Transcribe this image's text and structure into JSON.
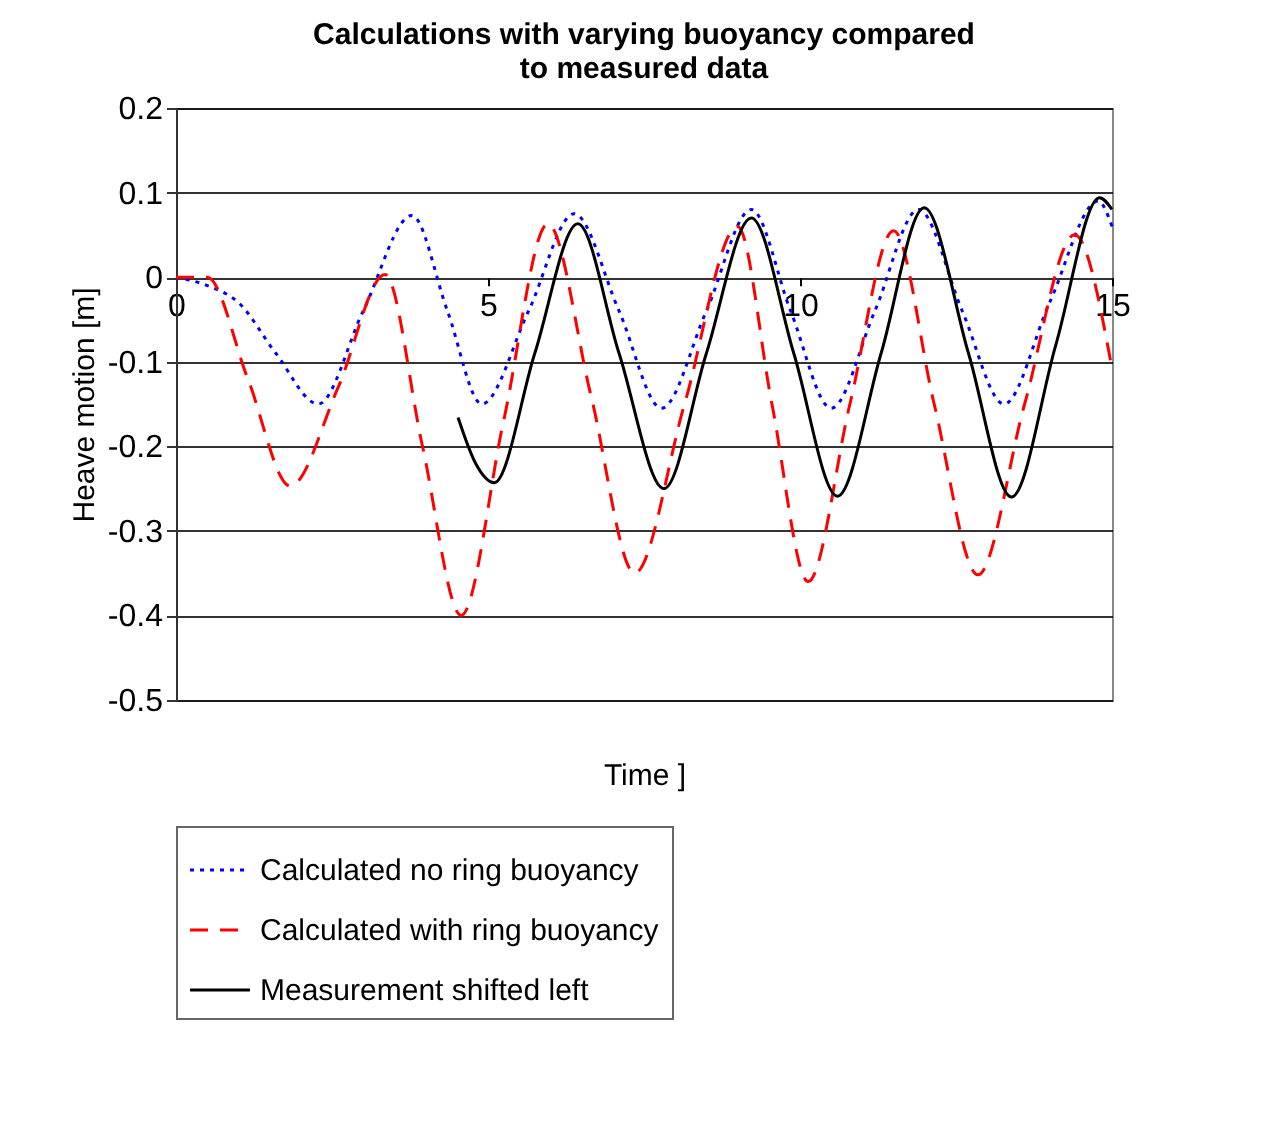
{
  "chart_data": {
    "type": "line",
    "title": "Calculations with varying buoyancy compared to measured data",
    "xlabel": "Time ]",
    "ylabel": "Heave motion [m]",
    "xlim": [
      0,
      15
    ],
    "xticks": [
      0,
      5,
      10,
      15
    ],
    "ylim": [
      -0.5,
      0.2
    ],
    "yticks": [
      -0.5,
      -0.4,
      -0.3,
      -0.2,
      -0.1,
      0,
      0.1,
      0.2
    ],
    "grid": "y",
    "legend": "bottom",
    "series": [
      {
        "name": "Calculated no ring buoyancy",
        "color": "#0000ff",
        "line_style": "dotted",
        "x": [
          0,
          0.5,
          1.0,
          1.6,
          2.28,
          3.0,
          3.78,
          4.35,
          4.9,
          5.65,
          6.38,
          7.1,
          7.78,
          8.5,
          9.22,
          9.85,
          10.5,
          11.2,
          11.9,
          12.6,
          13.27,
          14.0,
          14.78,
          15
        ],
        "values": [
          0,
          -0.01,
          -0.03,
          -0.09,
          -0.15,
          -0.04,
          0.073,
          -0.04,
          -0.15,
          -0.04,
          0.075,
          -0.04,
          -0.155,
          -0.04,
          0.08,
          -0.04,
          -0.155,
          -0.04,
          0.08,
          -0.04,
          -0.15,
          -0.03,
          0.09,
          0.06
        ]
      },
      {
        "name": "Calculated with ring buoyancy",
        "color": "#ff0000",
        "line_style": "dashed",
        "x": [
          0,
          0.5,
          1.15,
          1.83,
          2.6,
          3.35,
          3.95,
          4.57,
          5.25,
          5.96,
          6.65,
          7.35,
          8.15,
          9.0,
          9.55,
          10.13,
          10.8,
          11.5,
          12.15,
          12.85,
          13.6,
          14.4,
          15
        ],
        "values": [
          0,
          0,
          -0.12,
          -0.247,
          -0.13,
          0.003,
          -0.2,
          -0.4,
          -0.17,
          0.063,
          -0.14,
          -0.35,
          -0.15,
          0.06,
          -0.15,
          -0.36,
          -0.15,
          0.055,
          -0.15,
          -0.352,
          -0.15,
          0.05,
          -0.108
        ]
      },
      {
        "name": "Measurement shifted left",
        "color": "#000000",
        "line_style": "solid",
        "x": [
          4.52,
          4.8,
          5.1,
          5.75,
          6.44,
          7.1,
          7.82,
          8.5,
          9.22,
          9.9,
          10.6,
          11.3,
          11.99,
          12.7,
          13.39,
          14.1,
          14.8,
          15
        ],
        "values": [
          -0.166,
          -0.22,
          -0.243,
          -0.09,
          0.063,
          -0.09,
          -0.25,
          -0.09,
          0.07,
          -0.09,
          -0.259,
          -0.09,
          0.082,
          -0.09,
          -0.26,
          -0.08,
          0.094,
          0.08
        ]
      }
    ]
  }
}
